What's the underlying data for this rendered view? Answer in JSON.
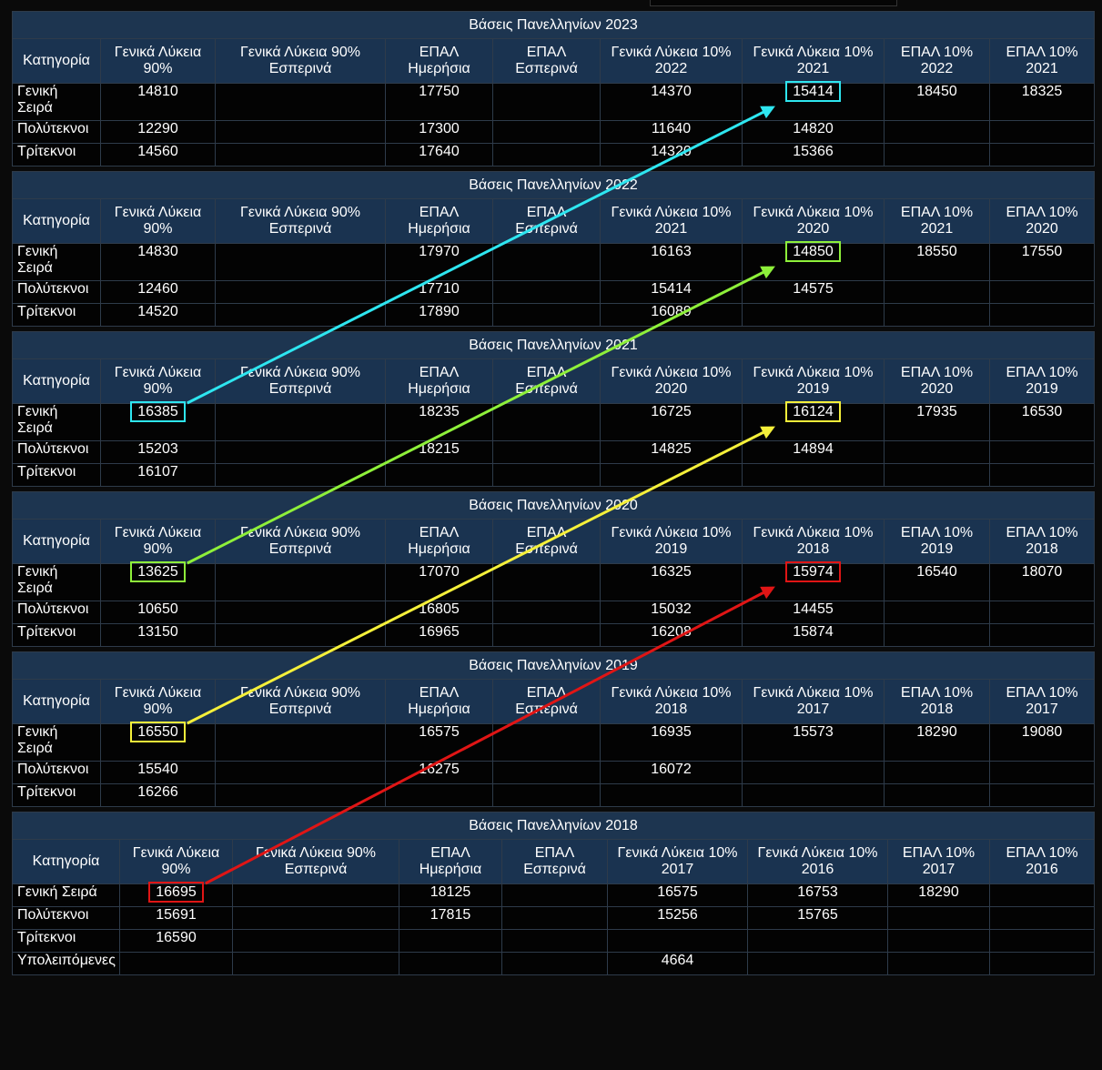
{
  "tables": [
    {
      "title": "Βάσεις Πανελληνίων 2023",
      "headers": [
        "Κατηγορία",
        "Γενικά Λύκεια 90%",
        "Γενικά Λύκεια 90% Εσπερινά",
        "ΕΠΑΛ Ημερήσια",
        "ΕΠΑΛ Εσπερινά",
        "Γενικά Λύκεια 10% 2022",
        "Γενικά Λύκεια 10% 2021",
        "ΕΠΑΛ 10% 2022",
        "ΕΠΑΛ 10% 2021"
      ],
      "rows": [
        [
          "Γενική Σειρά",
          "14810",
          "",
          "17750",
          "",
          "14370",
          "15414",
          "18450",
          "18325"
        ],
        [
          "Πολύτεκνοι",
          "12290",
          "",
          "17300",
          "",
          "11640",
          "14820",
          "",
          ""
        ],
        [
          "Τρίτεκνοι",
          "14560",
          "",
          "17640",
          "",
          "14320",
          "15366",
          "",
          ""
        ]
      ]
    },
    {
      "title": "Βάσεις Πανελληνίων 2022",
      "headers": [
        "Κατηγορία",
        "Γενικά Λύκεια 90%",
        "Γενικά Λύκεια 90% Εσπερινά",
        "ΕΠΑΛ Ημερήσια",
        "ΕΠΑΛ Εσπερινά",
        "Γενικά Λύκεια 10% 2021",
        "Γενικά Λύκεια 10% 2020",
        "ΕΠΑΛ 10% 2021",
        "ΕΠΑΛ 10% 2020"
      ],
      "rows": [
        [
          "Γενική Σειρά",
          "14830",
          "",
          "17970",
          "",
          "16163",
          "14850",
          "18550",
          "17550"
        ],
        [
          "Πολύτεκνοι",
          "12460",
          "",
          "17710",
          "",
          "15414",
          "14575",
          "",
          ""
        ],
        [
          "Τρίτεκνοι",
          "14520",
          "",
          "17890",
          "",
          "16089",
          "",
          "",
          ""
        ]
      ]
    },
    {
      "title": "Βάσεις Πανελληνίων 2021",
      "headers": [
        "Κατηγορία",
        "Γενικά Λύκεια 90%",
        "Γενικά Λύκεια 90% Εσπερινά",
        "ΕΠΑΛ Ημερήσια",
        "ΕΠΑΛ Εσπερινά",
        "Γενικά Λύκεια 10% 2020",
        "Γενικά Λύκεια 10% 2019",
        "ΕΠΑΛ 10% 2020",
        "ΕΠΑΛ 10% 2019"
      ],
      "rows": [
        [
          "Γενική Σειρά",
          "16385",
          "",
          "18235",
          "",
          "16725",
          "16124",
          "17935",
          "16530"
        ],
        [
          "Πολύτεκνοι",
          "15203",
          "",
          "18215",
          "",
          "14825",
          "14894",
          "",
          ""
        ],
        [
          "Τρίτεκνοι",
          "16107",
          "",
          "",
          "",
          "",
          "",
          "",
          ""
        ]
      ]
    },
    {
      "title": "Βάσεις Πανελληνίων 2020",
      "headers": [
        "Κατηγορία",
        "Γενικά Λύκεια 90%",
        "Γενικά Λύκεια 90% Εσπερινά",
        "ΕΠΑΛ Ημερήσια",
        "ΕΠΑΛ Εσπερινά",
        "Γενικά Λύκεια 10% 2019",
        "Γενικά Λύκεια 10% 2018",
        "ΕΠΑΛ 10% 2019",
        "ΕΠΑΛ 10% 2018"
      ],
      "rows": [
        [
          "Γενική Σειρά",
          "13625",
          "",
          "17070",
          "",
          "16325",
          "15974",
          "16540",
          "18070"
        ],
        [
          "Πολύτεκνοι",
          "10650",
          "",
          "16805",
          "",
          "15032",
          "14455",
          "",
          ""
        ],
        [
          "Τρίτεκνοι",
          "13150",
          "",
          "16965",
          "",
          "16208",
          "15874",
          "",
          ""
        ]
      ]
    },
    {
      "title": "Βάσεις Πανελληνίων 2019",
      "headers": [
        "Κατηγορία",
        "Γενικά Λύκεια 90%",
        "Γενικά Λύκεια 90% Εσπερινά",
        "ΕΠΑΛ Ημερήσια",
        "ΕΠΑΛ Εσπερινά",
        "Γενικά Λύκεια 10% 2018",
        "Γενικά Λύκεια 10% 2017",
        "ΕΠΑΛ 10% 2018",
        "ΕΠΑΛ 10% 2017"
      ],
      "rows": [
        [
          "Γενική Σειρά",
          "16550",
          "",
          "16575",
          "",
          "16935",
          "15573",
          "18290",
          "19080"
        ],
        [
          "Πολύτεκνοι",
          "15540",
          "",
          "16275",
          "",
          "16072",
          "",
          "",
          ""
        ],
        [
          "Τρίτεκνοι",
          "16266",
          "",
          "",
          "",
          "",
          "",
          "",
          ""
        ]
      ]
    },
    {
      "title": "Βάσεις Πανελληνίων 2018",
      "headers": [
        "Κατηγορία",
        "Γενικά Λύκεια 90%",
        "Γενικά Λύκεια 90% Εσπερινά",
        "ΕΠΑΛ Ημερήσια",
        "ΕΠΑΛ Εσπερινά",
        "Γενικά Λύκεια 10% 2017",
        "Γενικά Λύκεια 10% 2016",
        "ΕΠΑΛ 10% 2017",
        "ΕΠΑΛ 10% 2016"
      ],
      "rows": [
        [
          "Γενική Σειρά",
          "16695",
          "",
          "18125",
          "",
          "16575",
          "16753",
          "18290",
          ""
        ],
        [
          "Πολύτεκνοι",
          "15691",
          "",
          "17815",
          "",
          "15256",
          "15765",
          "",
          ""
        ],
        [
          "Τρίτεκνοι",
          "16590",
          "",
          "",
          "",
          "",
          "",
          "",
          ""
        ],
        [
          "Υπολειπόμενες",
          "",
          "",
          "",
          "",
          "4664",
          "",
          "",
          ""
        ]
      ]
    }
  ],
  "highlights": [
    {
      "color": "#2ee6f0",
      "from": {
        "table": 2,
        "row": 0,
        "col": 1
      },
      "to": {
        "table": 0,
        "row": 0,
        "col": 6
      }
    },
    {
      "color": "#8ef03a",
      "from": {
        "table": 3,
        "row": 0,
        "col": 1
      },
      "to": {
        "table": 1,
        "row": 0,
        "col": 6
      }
    },
    {
      "color": "#f5f03a",
      "from": {
        "table": 4,
        "row": 0,
        "col": 1
      },
      "to": {
        "table": 2,
        "row": 0,
        "col": 6
      }
    },
    {
      "color": "#e01515",
      "from": {
        "table": 5,
        "row": 0,
        "col": 1
      },
      "to": {
        "table": 3,
        "row": 0,
        "col": 6
      }
    }
  ]
}
